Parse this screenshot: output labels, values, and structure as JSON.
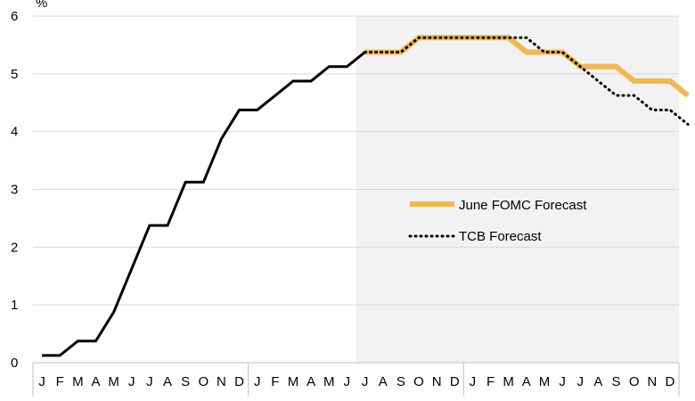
{
  "chart_data": {
    "type": "line",
    "ylabel": "%",
    "ylim": [
      0,
      6
    ],
    "yticks": [
      "0",
      "1",
      "2",
      "3",
      "4",
      "5",
      "6"
    ],
    "months": [
      "J",
      "F",
      "M",
      "A",
      "M",
      "J",
      "J",
      "A",
      "S",
      "O",
      "N",
      "D",
      "J",
      "F",
      "M",
      "A",
      "M",
      "J",
      "J",
      "A",
      "S",
      "O",
      "N",
      "D",
      "J",
      "F",
      "M",
      "A",
      "M",
      "J",
      "J",
      "A",
      "S",
      "O",
      "N",
      "D"
    ],
    "forecast_start_index": 18,
    "grid": "horizontal",
    "legend_position": "center-right",
    "series": [
      {
        "name": "",
        "color": "#000000",
        "style": "solid",
        "values": [
          0.125,
          0.125,
          0.375,
          0.375,
          0.875,
          1.625,
          2.375,
          2.375,
          3.125,
          3.125,
          3.875,
          4.375,
          4.375,
          4.625,
          4.875,
          4.875,
          5.125,
          5.125,
          5.375
        ]
      },
      {
        "name": "June FOMC Forecast",
        "color": "#f2b84b",
        "style": "solid",
        "values": [
          5.375,
          5.375,
          5.375,
          5.625,
          5.625,
          5.625,
          5.625,
          5.625,
          5.625,
          5.375,
          5.375,
          5.375,
          5.125,
          5.125,
          5.125,
          4.875,
          4.875,
          4.875,
          4.625
        ]
      },
      {
        "name": "TCB Forecast",
        "color": "#000000",
        "style": "dotted",
        "values": [
          5.375,
          5.375,
          5.375,
          5.625,
          5.625,
          5.625,
          5.625,
          5.625,
          5.625,
          5.625,
          5.375,
          5.375,
          5.125,
          4.875,
          4.625,
          4.625,
          4.375,
          4.375,
          4.125
        ]
      }
    ]
  }
}
